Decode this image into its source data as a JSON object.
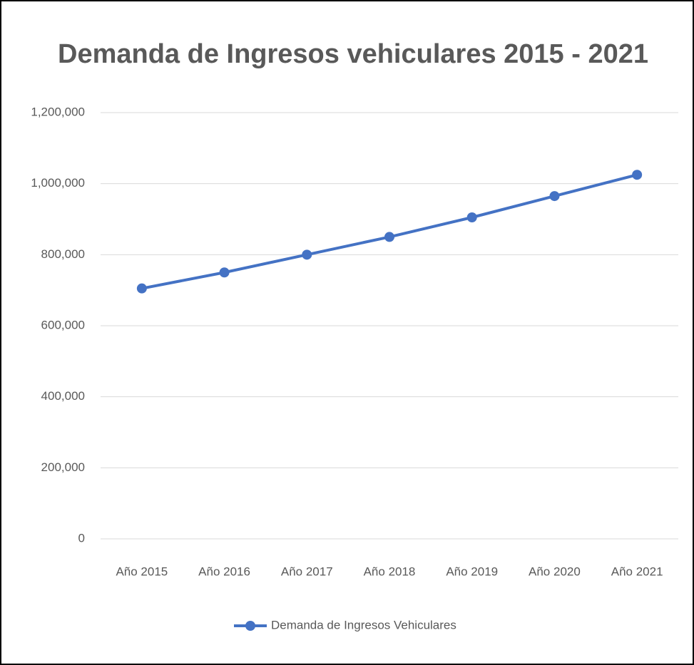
{
  "chart_data": {
    "type": "line",
    "title": "Demanda de Ingresos vehiculares  2015 - 2021",
    "categories": [
      "Año 2015",
      "Año 2016",
      "Año 2017",
      "Año 2018",
      "Año 2019",
      "Año 2020",
      "Año 2021"
    ],
    "series": [
      {
        "name": "Demanda de Ingresos Vehiculares",
        "color": "#4472c4",
        "values": [
          705000,
          750000,
          800000,
          850000,
          905000,
          965000,
          1025000
        ]
      }
    ],
    "ylim": [
      0,
      1200000
    ],
    "yticks": [
      0,
      {
        "value": 200000,
        "label": "200,000"
      },
      {
        "value": 400000,
        "label": "400,000"
      },
      {
        "value": 600000,
        "label": "600,000"
      },
      {
        "value": 800000,
        "label": "800,000"
      },
      {
        "value": 1000000,
        "label": "1,000,000"
      },
      {
        "value": 1200000,
        "label": "1,200,000"
      }
    ],
    "grid": true,
    "legend": "bottom"
  }
}
